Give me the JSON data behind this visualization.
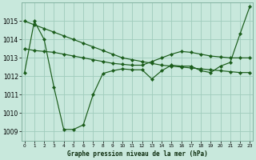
{
  "title": "Graphe pression niveau de la mer (hPa)",
  "xlabel_hours": [
    0,
    1,
    2,
    3,
    4,
    5,
    6,
    7,
    8,
    9,
    10,
    11,
    12,
    13,
    14,
    15,
    16,
    17,
    18,
    19,
    20,
    21,
    22,
    23
  ],
  "line1_y": [
    1015.0,
    1014.8,
    1014.6,
    1014.4,
    1014.2,
    1014.0,
    1013.8,
    1013.6,
    1013.4,
    1013.2,
    1013.0,
    1012.9,
    1012.8,
    1012.7,
    1012.6,
    1012.55,
    1012.5,
    1012.45,
    1012.4,
    1012.35,
    1012.3,
    1012.25,
    1012.2,
    1012.2
  ],
  "line2_y": [
    1012.2,
    1015.0,
    1014.0,
    1011.4,
    1009.1,
    1009.1,
    1009.35,
    1011.0,
    1012.15,
    1012.3,
    1012.4,
    1012.35,
    1012.35,
    1011.85,
    1012.3,
    1012.6,
    1012.55,
    1012.55,
    1012.3,
    1012.2,
    1012.55,
    1012.75,
    1014.3,
    1015.8
  ],
  "line3_x": [
    0,
    1,
    2,
    3,
    4,
    5,
    6,
    7,
    8,
    9,
    10,
    11,
    12,
    13,
    14,
    15,
    16,
    17,
    18,
    19,
    20,
    21,
    22,
    23
  ],
  "line3_y": [
    1013.5,
    1013.4,
    1013.35,
    1013.3,
    1013.2,
    1013.1,
    1013.0,
    1012.9,
    1012.8,
    1012.7,
    1012.65,
    1012.6,
    1012.6,
    1012.8,
    1013.0,
    1013.2,
    1013.35,
    1013.3,
    1013.2,
    1013.1,
    1013.05,
    1013.0,
    1013.0,
    1013.0
  ],
  "bg_color": "#c8e8dc",
  "line_color": "#1a5c1a",
  "grid_major_color": "#a0ccbc",
  "grid_minor_color": "#b8dcd0",
  "ylabel_values": [
    1009,
    1010,
    1011,
    1012,
    1013,
    1014,
    1015
  ],
  "ylim": [
    1008.5,
    1016.0
  ],
  "xlim": [
    -0.3,
    23.3
  ],
  "ytick_fontsize": 5.5,
  "xtick_fontsize": 4.2,
  "label_fontsize": 5.5,
  "marker_size": 2.2,
  "line_width": 0.85
}
